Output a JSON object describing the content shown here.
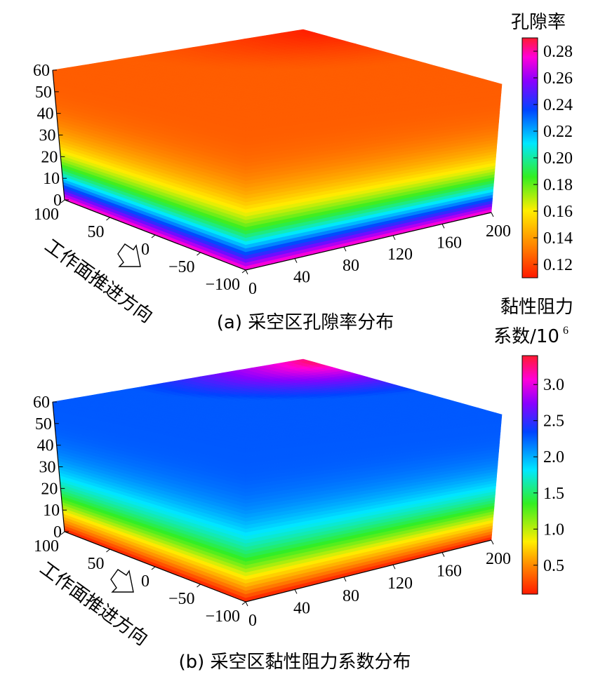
{
  "chart_data": [
    {
      "type": "heatmap",
      "caption": "(a)  采空区孔隙率分布",
      "colorbar": {
        "title": "孔隙率",
        "ticks": [
          "0.28",
          "0.26",
          "0.24",
          "0.22",
          "0.20",
          "0.18",
          "0.16",
          "0.14",
          "0.12"
        ],
        "tick_values": [
          0.28,
          0.26,
          0.24,
          0.22,
          0.2,
          0.18,
          0.16,
          0.14,
          0.12
        ],
        "range": [
          0.11,
          0.29
        ]
      },
      "z_axis": {
        "ticks": [
          "60",
          "50",
          "40",
          "30",
          "20",
          "10",
          "0"
        ],
        "range": [
          0,
          60
        ]
      },
      "x_axis": {
        "label": "工作面推进方向",
        "ticks": [
          "100",
          "50",
          "0",
          "−50",
          "−100"
        ],
        "range": [
          -100,
          100
        ]
      },
      "y_axis": {
        "ticks": [
          "0",
          "40",
          "80",
          "120",
          "160",
          "200"
        ],
        "range": [
          0,
          200
        ]
      },
      "field": {
        "side_bottom_value": 0.28,
        "side_top_value": 0.125,
        "top_min_value": 0.11,
        "top_base_value": 0.125
      }
    },
    {
      "type": "heatmap",
      "caption": "(b)  采空区黏性阻力系数分布",
      "colorbar": {
        "title_line1": "黏性阻力",
        "title_line2": "系数/10",
        "title_sup": "6",
        "ticks": [
          "3.0",
          "2.5",
          "2.0",
          "1.5",
          "1.0",
          "0.5"
        ],
        "tick_values": [
          3.0,
          2.5,
          2.0,
          1.5,
          1.0,
          0.5
        ],
        "range": [
          0.1,
          3.4
        ]
      },
      "z_axis": {
        "ticks": [
          "60",
          "50",
          "40",
          "30",
          "20",
          "10",
          "0"
        ],
        "range": [
          0,
          60
        ]
      },
      "x_axis": {
        "label": "工作面推进方向",
        "ticks": [
          "100",
          "50",
          "0",
          "−50",
          "−100"
        ],
        "range": [
          -100,
          100
        ]
      },
      "y_axis": {
        "ticks": [
          "0",
          "40",
          "80",
          "120",
          "160",
          "200"
        ],
        "range": [
          0,
          200
        ]
      },
      "field": {
        "side_bottom_value": 0.1,
        "side_top_value": 2.35,
        "top_max_value": 3.4,
        "top_base_value": 2.35
      }
    }
  ]
}
